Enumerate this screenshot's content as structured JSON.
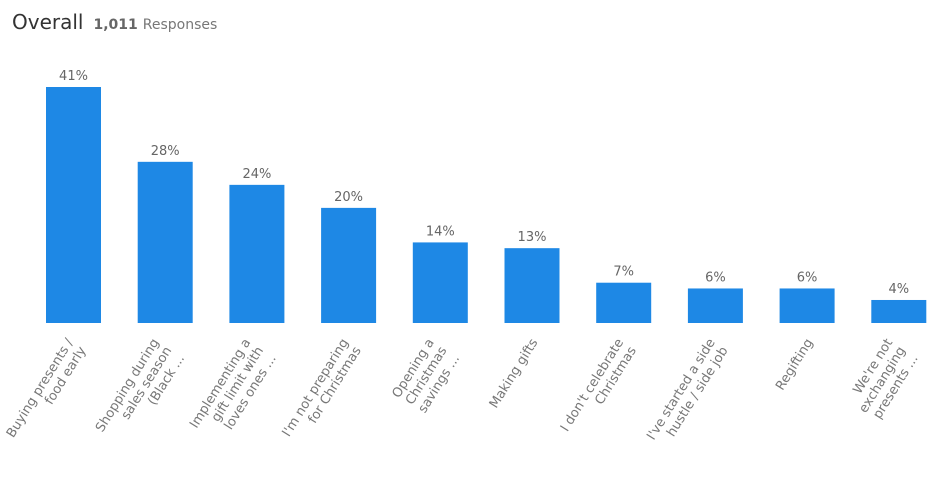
{
  "header": {
    "title": "Overall",
    "count": "1,011",
    "responses_label": "Responses"
  },
  "chart_data": {
    "type": "bar",
    "categories": [
      [
        "Buying presents /",
        "food early"
      ],
      [
        "Shopping during",
        "sales season",
        "(Black ..."
      ],
      [
        "Implementing a",
        "gift limit with",
        "loves ones ..."
      ],
      [
        "I'm not preparing",
        "for Christmas"
      ],
      [
        "Opening a",
        "Christmas",
        "savings ..."
      ],
      [
        "Making gifts"
      ],
      [
        "I don't celebrate",
        "Christmas"
      ],
      [
        "I've started a side",
        "hustle / side job"
      ],
      [
        "Regifting"
      ],
      [
        "We're not",
        "exchanging",
        "presents ..."
      ]
    ],
    "values": [
      41,
      28,
      24,
      20,
      14,
      13,
      7,
      6,
      6,
      4
    ],
    "value_labels": [
      "41%",
      "28%",
      "24%",
      "20%",
      "14%",
      "13%",
      "7%",
      "6%",
      "6%",
      "4%"
    ],
    "unit": "%",
    "ylim": [
      0,
      41
    ],
    "grid": false,
    "bar_color": "#1e88e5"
  }
}
